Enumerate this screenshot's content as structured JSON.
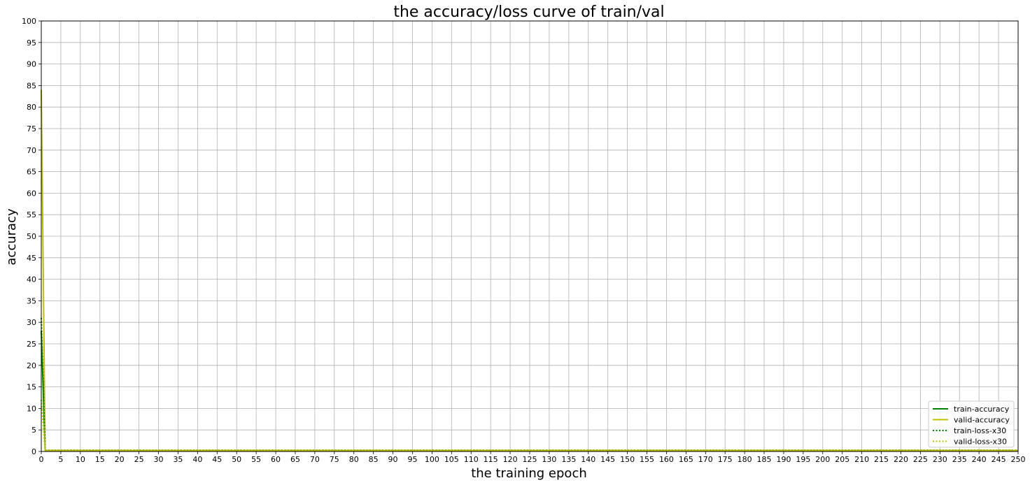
{
  "chart_data": {
    "type": "line",
    "title": "the accuracy/loss curve of train/val",
    "xlabel": "the training epoch",
    "ylabel": "accuracy",
    "xlim": [
      0,
      250
    ],
    "ylim": [
      0,
      100
    ],
    "xtick_step": 5,
    "ytick_step": 5,
    "grid": true,
    "legend_position": "lower-right",
    "series": [
      {
        "name": "train-accuracy",
        "color": "#008000",
        "style": "solid",
        "x": [
          0,
          1,
          2,
          5,
          10,
          20,
          50,
          100,
          150,
          200,
          250
        ],
        "y": [
          28,
          0.2,
          0.2,
          0.2,
          0.2,
          0.2,
          0.2,
          0.2,
          0.2,
          0.2,
          0.2
        ]
      },
      {
        "name": "valid-accuracy",
        "color": "#bfbf00",
        "style": "solid",
        "x": [
          0,
          1,
          2,
          5,
          10,
          20,
          50,
          100,
          150,
          200,
          250
        ],
        "y": [
          84,
          0.2,
          0.2,
          0.2,
          0.2,
          0.2,
          0.2,
          0.2,
          0.2,
          0.2,
          0.2
        ]
      },
      {
        "name": "train-loss-x30",
        "color": "#008000",
        "style": "dotted",
        "x": [
          0,
          1,
          2,
          5,
          10,
          20,
          50,
          100,
          150,
          200,
          250
        ],
        "y": [
          31,
          0.3,
          0.3,
          0.3,
          0.3,
          0.3,
          0.3,
          0.3,
          0.3,
          0.3,
          0.3
        ]
      },
      {
        "name": "valid-loss-x30",
        "color": "#bfbf00",
        "style": "dotted",
        "x": [
          0,
          1,
          2,
          5,
          10,
          20,
          50,
          100,
          150,
          200,
          250
        ],
        "y": [
          12,
          0.3,
          0.3,
          0.3,
          0.3,
          0.3,
          0.3,
          0.3,
          0.3,
          0.3,
          0.3
        ]
      }
    ]
  }
}
